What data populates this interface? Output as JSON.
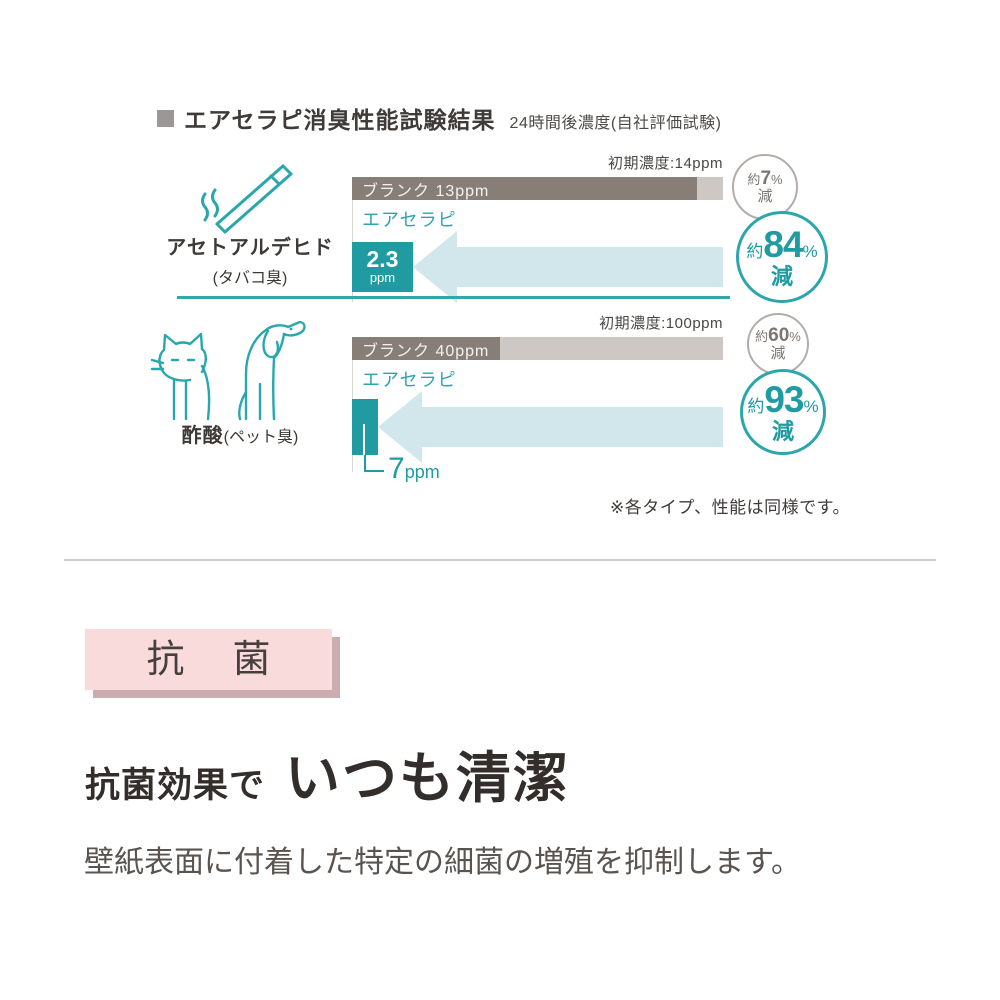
{
  "title": {
    "heading": "エアセラピ消臭性能試験結果",
    "subtitle": "24時間後濃度(自社評価試験)"
  },
  "chart_data": {
    "type": "bar",
    "title": "エアセラピ消臭性能試験結果 24時間後濃度(自社評価試験)",
    "unit": "ppm",
    "legend_position": "none",
    "sections": [
      {
        "substance": "アセトアルデヒド",
        "odor": "(タバコ臭)",
        "icon": "cigarette-icon",
        "initial_label": "初期濃度:14ppm",
        "initial_ppm": 14,
        "blank": {
          "label": "ブランク 13ppm",
          "value": 13
        },
        "airtherapy": {
          "label": "エアセラピ",
          "value": 2.3,
          "value_label": "2.3",
          "unit": "ppm"
        },
        "blank_reduction": {
          "prefix": "約",
          "value": "7",
          "percent": "%",
          "suffix": "減"
        },
        "main_reduction": {
          "prefix": "約",
          "value": "84",
          "percent": "%",
          "suffix": "減"
        }
      },
      {
        "substance": "酢酸",
        "odor": "(ペット臭)",
        "icon": "cat-dog-icon",
        "initial_label": "初期濃度:100ppm",
        "initial_ppm": 100,
        "blank": {
          "label": "ブランク  40ppm",
          "value": 40
        },
        "airtherapy": {
          "label": "エアセラピ",
          "value": 7,
          "value_label": "7",
          "unit": "ppm"
        },
        "callout": {
          "value": "7",
          "unit": "ppm"
        },
        "blank_reduction": {
          "prefix": "約",
          "value": "60",
          "percent": "%",
          "suffix": "減"
        },
        "main_reduction": {
          "prefix": "約",
          "value": "93",
          "percent": "%",
          "suffix": "減"
        }
      }
    ],
    "note": "※各タイプ、性能は同様です。"
  },
  "antibacterial": {
    "badge": "抗菌",
    "heading_small": "抗菌効果で",
    "heading_large": "いつも清潔",
    "description": "壁紙表面に付着した特定の細菌の増殖を抑制します。"
  },
  "colors": {
    "accent_teal": "#1f9ba1",
    "arrow_light_teal": "#d2e7eb",
    "bar_dark": "#877e78",
    "bar_light": "#cdc8c3",
    "circle_gray_border": "#b2adaa",
    "badge_pink": "#f9dbdb",
    "badge_shadow": "#ccadaf"
  }
}
